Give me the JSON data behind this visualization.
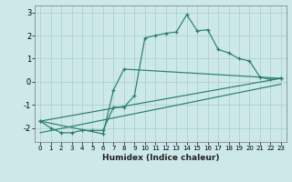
{
  "line1": {
    "x": [
      0,
      1,
      2,
      3,
      4,
      5,
      6,
      7,
      8,
      9,
      10,
      11,
      12,
      13,
      14,
      15,
      16,
      17,
      18,
      19,
      20,
      21,
      22,
      23
    ],
    "y": [
      -1.7,
      -2.0,
      -2.2,
      -2.2,
      -2.1,
      -2.1,
      -2.1,
      -1.1,
      -1.1,
      -0.6,
      1.9,
      2.0,
      2.1,
      2.15,
      2.9,
      2.2,
      2.25,
      1.4,
      1.25,
      1.0,
      0.9,
      0.2,
      0.1,
      0.15
    ]
  },
  "line2": {
    "x": [
      0,
      6,
      7,
      8,
      23
    ],
    "y": [
      -1.7,
      -2.25,
      -0.35,
      0.55,
      0.15
    ]
  },
  "line3": {
    "x": [
      0,
      23
    ],
    "y": [
      -1.7,
      0.15
    ]
  },
  "line4": {
    "x": [
      0,
      23
    ],
    "y": [
      -2.2,
      -0.1
    ]
  },
  "color": "#2a7d6e",
  "bg_color": "#cce8e8",
  "grid_color": "#aacccc",
  "xlabel": "Humidex (Indice chaleur)",
  "xlim": [
    -0.5,
    23.5
  ],
  "ylim": [
    -2.6,
    3.3
  ],
  "yticks": [
    -2,
    -1,
    0,
    1,
    2,
    3
  ],
  "xticks": [
    0,
    1,
    2,
    3,
    4,
    5,
    6,
    7,
    8,
    9,
    10,
    11,
    12,
    13,
    14,
    15,
    16,
    17,
    18,
    19,
    20,
    21,
    22,
    23
  ]
}
